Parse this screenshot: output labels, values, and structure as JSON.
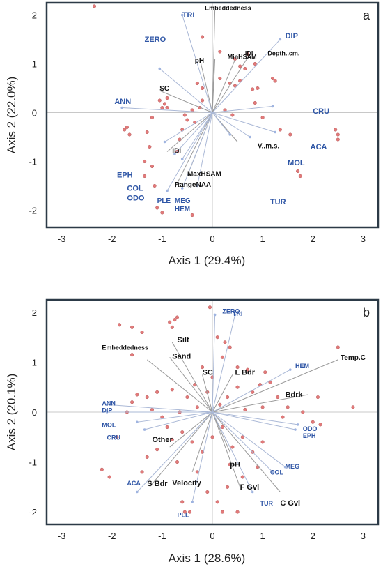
{
  "chart_data": [
    {
      "type": "scatter",
      "panel": "a",
      "xlabel": "Axis 1 (29.4%)",
      "ylabel": "Axis 2 (22.0%)",
      "xlim": [
        -3.3,
        3.3
      ],
      "ylim": [
        -2.35,
        2.25
      ],
      "xticks": [
        -3,
        -2,
        -1,
        0,
        1,
        2,
        3
      ],
      "yticks": [
        -2,
        -1,
        0,
        1,
        2
      ],
      "env_vectors": [
        {
          "name": "Embeddedness",
          "x": 0.05,
          "y": 2.1,
          "lx": -0.15,
          "ly": 2.1,
          "size": 9
        },
        {
          "name": "pH",
          "x": -0.25,
          "y": 1.1,
          "lx": -0.35,
          "ly": 1.02,
          "size": 10
        },
        {
          "name": "MinHSAM",
          "x": 0.05,
          "y": 1.1,
          "lx": 0.3,
          "ly": 1.1,
          "size": 9
        },
        {
          "name": "IDI",
          "x": 0.5,
          "y": 1.2,
          "lx": 0.65,
          "ly": 1.17,
          "size": 9
        },
        {
          "name": "Depth..cm.",
          "x": 0.75,
          "y": 1.2,
          "lx": 1.1,
          "ly": 1.17,
          "size": 9
        },
        {
          "name": "SC",
          "x": -1.05,
          "y": 0.45,
          "lx": -1.05,
          "ly": 0.45,
          "size": 10
        },
        {
          "name": "IDI",
          "x": -0.9,
          "y": -0.8,
          "lx": -0.8,
          "ly": -0.83,
          "size": 10
        },
        {
          "name": "MaxHSAM",
          "x": -0.5,
          "y": -1.3,
          "lx": -0.5,
          "ly": -1.3,
          "size": 10
        },
        {
          "name": "RangeNAA",
          "x": -0.75,
          "y": -1.55,
          "lx": -0.75,
          "ly": -1.52,
          "size": 10
        },
        {
          "name": "V..m.s.",
          "x": 0.5,
          "y": -0.6,
          "lx": 0.9,
          "ly": -0.73,
          "size": 10
        }
      ],
      "species_vectors": [
        {
          "name": "TRI",
          "x": -0.6,
          "y": 2.0,
          "lx": -0.6,
          "ly": 1.95,
          "size": 11
        },
        {
          "name": "ZERO",
          "x": -1.05,
          "y": 0.9,
          "lx": -1.35,
          "ly": 1.45,
          "size": 11
        },
        {
          "name": "DIP",
          "x": 1.35,
          "y": 1.5,
          "lx": 1.45,
          "ly": 1.52,
          "size": 11
        },
        {
          "name": "ANN",
          "x": -1.8,
          "y": 0.1,
          "lx": -1.95,
          "ly": 0.18,
          "size": 11
        },
        {
          "name": "CRU",
          "x": 1.2,
          "y": 0.13,
          "lx": 2.0,
          "ly": -0.02,
          "size": 11
        },
        {
          "name": "ACA",
          "x": 1.25,
          "y": -0.4,
          "lx": 1.95,
          "ly": -0.75,
          "size": 11
        },
        {
          "name": "MOL",
          "x": 0.75,
          "y": -0.5,
          "lx": 1.5,
          "ly": -1.08,
          "size": 11
        },
        {
          "name": "TUR",
          "x": 0.35,
          "y": -0.45,
          "lx": 1.15,
          "ly": -1.88,
          "size": 11
        },
        {
          "name": "EPH",
          "x": -0.95,
          "y": -0.6,
          "lx": -1.9,
          "ly": -1.33,
          "size": 11
        },
        {
          "name": "COL",
          "x": -0.75,
          "y": -0.85,
          "lx": -1.7,
          "ly": -1.6,
          "size": 11
        },
        {
          "name": "ODO",
          "x": -0.6,
          "y": -0.95,
          "lx": -1.7,
          "ly": -1.8,
          "size": 11
        },
        {
          "name": "PLE",
          "x": -0.9,
          "y": -1.6,
          "lx": -1.1,
          "ly": -1.85,
          "size": 10
        },
        {
          "name": "MEG",
          "x": -0.6,
          "y": -1.55,
          "lx": -0.75,
          "ly": -1.85,
          "size": 10
        },
        {
          "name": "HEM",
          "x": -0.3,
          "y": -1.5,
          "lx": -0.75,
          "ly": -2.02,
          "size": 10
        }
      ],
      "site_points": [
        [
          -2.35,
          2.18
        ],
        [
          -1.5,
          2.35
        ],
        [
          -0.2,
          1.55
        ],
        [
          0.15,
          1.25
        ],
        [
          0.45,
          1.1
        ],
        [
          0.55,
          0.95
        ],
        [
          0.65,
          0.9
        ],
        [
          0.85,
          1.0
        ],
        [
          0.7,
          1.2
        ],
        [
          1.2,
          0.7
        ],
        [
          1.25,
          0.65
        ],
        [
          0.8,
          0.48
        ],
        [
          0.9,
          0.5
        ],
        [
          0.45,
          0.55
        ],
        [
          -0.2,
          0.25
        ],
        [
          -0.25,
          0.1
        ],
        [
          -0.4,
          0.05
        ],
        [
          -0.35,
          -0.2
        ],
        [
          -0.5,
          -0.15
        ],
        [
          -0.6,
          -0.35
        ],
        [
          -0.65,
          -0.55
        ],
        [
          -0.7,
          -0.8
        ],
        [
          -0.95,
          0.18
        ],
        [
          -0.9,
          0.1
        ],
        [
          -1.0,
          0.1
        ],
        [
          -1.05,
          0.25
        ],
        [
          -0.9,
          0.3
        ],
        [
          -1.2,
          -0.1
        ],
        [
          -1.7,
          -0.3
        ],
        [
          -1.75,
          -0.35
        ],
        [
          -1.65,
          -0.45
        ],
        [
          -1.3,
          -0.4
        ],
        [
          -1.25,
          -0.7
        ],
        [
          -1.35,
          -1.0
        ],
        [
          -1.2,
          -1.1
        ],
        [
          -1.35,
          -1.3
        ],
        [
          -1.15,
          -1.5
        ],
        [
          -1.1,
          -1.95
        ],
        [
          -1.0,
          -2.05
        ],
        [
          -0.4,
          -2.1
        ],
        [
          0.85,
          0.2
        ],
        [
          1.0,
          -0.1
        ],
        [
          1.35,
          -0.35
        ],
        [
          1.55,
          -0.45
        ],
        [
          1.7,
          -1.2
        ],
        [
          1.75,
          -1.3
        ],
        [
          2.45,
          -0.35
        ],
        [
          2.5,
          -0.45
        ],
        [
          2.5,
          -0.55
        ],
        [
          0.55,
          0.65
        ],
        [
          0.35,
          0.6
        ],
        [
          -0.2,
          0.5
        ],
        [
          -0.3,
          0.6
        ],
        [
          0.15,
          0.7
        ],
        [
          -0.55,
          -0.05
        ],
        [
          0.25,
          0.05
        ],
        [
          0.4,
          -0.05
        ]
      ]
    },
    {
      "type": "scatter",
      "panel": "b",
      "xlabel": "Axis 1 (28.6%)",
      "ylabel": "Axis 2 (20.1%)",
      "xlim": [
        -3.3,
        3.3
      ],
      "ylim": [
        -2.25,
        2.25
      ],
      "xticks": [
        -3,
        -2,
        -1,
        0,
        1,
        2,
        3
      ],
      "yticks": [
        -2,
        -1,
        0,
        1,
        2
      ],
      "env_vectors": [
        {
          "name": "Embeddedness",
          "x": -1.3,
          "y": 1.05,
          "lx": -2.2,
          "ly": 1.25,
          "size": 9
        },
        {
          "name": "Silt",
          "x": -0.8,
          "y": 1.4,
          "lx": -0.7,
          "ly": 1.4,
          "size": 11
        },
        {
          "name": "Sand",
          "x": -0.85,
          "y": 1.1,
          "lx": -0.8,
          "ly": 1.07,
          "size": 11
        },
        {
          "name": "SC",
          "x": -0.2,
          "y": 0.75,
          "lx": -0.2,
          "ly": 0.75,
          "size": 11
        },
        {
          "name": "L Bdr",
          "x": 0.4,
          "y": 0.75,
          "lx": 0.45,
          "ly": 0.75,
          "size": 11
        },
        {
          "name": "Temp.C",
          "x": 2.5,
          "y": 1.05,
          "lx": 2.55,
          "ly": 1.05,
          "size": 10
        },
        {
          "name": "Bdrk",
          "x": 1.9,
          "y": 0.35,
          "lx": 1.45,
          "ly": 0.3,
          "size": 11
        },
        {
          "name": "Other",
          "x": -0.85,
          "y": -0.7,
          "lx": -1.2,
          "ly": -0.6,
          "size": 11
        },
        {
          "name": "S Bdr",
          "x": -1.25,
          "y": -1.5,
          "lx": -1.3,
          "ly": -1.48,
          "size": 11
        },
        {
          "name": "Velocity",
          "x": -0.4,
          "y": -1.2,
          "lx": -0.8,
          "ly": -1.47,
          "size": 11
        },
        {
          "name": "pH",
          "x": 0.35,
          "y": -0.8,
          "lx": 0.35,
          "ly": -1.1,
          "size": 11
        },
        {
          "name": "F Gvl",
          "x": 0.55,
          "y": -1.5,
          "lx": 0.55,
          "ly": -1.55,
          "size": 11
        },
        {
          "name": "C Gvl",
          "x": 1.35,
          "y": -1.6,
          "lx": 1.35,
          "ly": -1.87,
          "size": 11
        }
      ],
      "species_vectors": [
        {
          "name": "ZERO",
          "x": 0.05,
          "y": 1.95,
          "lx": 0.2,
          "ly": 1.98,
          "size": 9
        },
        {
          "name": "TRI",
          "x": 0.45,
          "y": 1.95,
          "lx": 0.4,
          "ly": 1.93,
          "size": 9
        },
        {
          "name": "HEM",
          "x": 1.55,
          "y": 0.85,
          "lx": 1.65,
          "ly": 0.88,
          "size": 9
        },
        {
          "name": "ANN",
          "x": -2.1,
          "y": 0.15,
          "lx": -2.2,
          "ly": 0.13,
          "size": 9
        },
        {
          "name": "DIP",
          "x": -2.1,
          "y": 0.0,
          "lx": -2.2,
          "ly": -0.01,
          "size": 9
        },
        {
          "name": "MOL",
          "x": -1.5,
          "y": -0.2,
          "lx": -2.2,
          "ly": -0.3,
          "size": 9
        },
        {
          "name": "CRU",
          "x": -1.35,
          "y": -0.35,
          "lx": -2.1,
          "ly": -0.55,
          "size": 9
        },
        {
          "name": "ODO",
          "x": 1.7,
          "y": -0.25,
          "lx": 1.8,
          "ly": -0.38,
          "size": 9
        },
        {
          "name": "EPH",
          "x": 1.65,
          "y": -0.35,
          "lx": 1.8,
          "ly": -0.52,
          "size": 9
        },
        {
          "name": "MEG",
          "x": 1.45,
          "y": -1.1,
          "lx": 1.45,
          "ly": -1.13,
          "size": 9
        },
        {
          "name": "COL",
          "x": 1.2,
          "y": -1.2,
          "lx": 1.15,
          "ly": -1.25,
          "size": 9
        },
        {
          "name": "ACA",
          "x": -1.5,
          "y": -1.6,
          "lx": -1.7,
          "ly": -1.47,
          "size": 9
        },
        {
          "name": "TUR",
          "x": 0.8,
          "y": -1.6,
          "lx": 0.95,
          "ly": -1.87,
          "size": 9
        },
        {
          "name": "PLE",
          "x": -0.4,
          "y": -1.8,
          "lx": -0.7,
          "ly": -2.1,
          "size": 9
        }
      ],
      "site_points": [
        [
          -1.85,
          1.75
        ],
        [
          -1.6,
          1.7
        ],
        [
          -1.4,
          1.6
        ],
        [
          -1.6,
          1.15
        ],
        [
          -0.85,
          1.8
        ],
        [
          -0.75,
          1.85
        ],
        [
          -0.7,
          1.9
        ],
        [
          -0.8,
          1.7
        ],
        [
          -0.05,
          2.1
        ],
        [
          0.1,
          1.5
        ],
        [
          0.25,
          1.4
        ],
        [
          0.35,
          1.3
        ],
        [
          0.2,
          1.1
        ],
        [
          2.5,
          1.3
        ],
        [
          2.8,
          0.1
        ],
        [
          2.1,
          0.3
        ],
        [
          2.0,
          -0.2
        ],
        [
          2.15,
          -0.25
        ],
        [
          1.8,
          0.0
        ],
        [
          1.3,
          0.3
        ],
        [
          1.5,
          0.1
        ],
        [
          1.0,
          0.1
        ],
        [
          0.8,
          0.4
        ],
        [
          0.5,
          0.5
        ],
        [
          0.3,
          0.3
        ],
        [
          0.15,
          0.15
        ],
        [
          -0.1,
          0.4
        ],
        [
          -0.3,
          0.1
        ],
        [
          -0.5,
          0.3
        ],
        [
          -0.8,
          0.45
        ],
        [
          -1.1,
          0.4
        ],
        [
          -1.3,
          0.3
        ],
        [
          -1.5,
          0.35
        ],
        [
          -1.6,
          0.2
        ],
        [
          -1.2,
          0.05
        ],
        [
          -1.0,
          -0.1
        ],
        [
          -0.9,
          -0.3
        ],
        [
          -0.6,
          -0.4
        ],
        [
          -0.4,
          -0.6
        ],
        [
          -0.2,
          -0.8
        ],
        [
          0.0,
          -0.5
        ],
        [
          0.2,
          -0.3
        ],
        [
          0.4,
          -0.7
        ],
        [
          0.6,
          -0.5
        ],
        [
          0.8,
          -0.8
        ],
        [
          1.0,
          -0.6
        ],
        [
          0.9,
          -1.1
        ],
        [
          0.6,
          -1.3
        ],
        [
          0.3,
          -1.5
        ],
        [
          0.1,
          -1.8
        ],
        [
          -0.1,
          -1.6
        ],
        [
          0.2,
          -2.0
        ],
        [
          0.5,
          -2.0
        ],
        [
          -2.2,
          -1.15
        ],
        [
          -2.05,
          -1.3
        ],
        [
          -1.4,
          -1.2
        ],
        [
          -1.3,
          -0.9
        ],
        [
          -1.1,
          -0.75
        ],
        [
          -0.7,
          -1.0
        ],
        [
          -0.6,
          -1.8
        ],
        [
          -0.3,
          -1.2
        ],
        [
          -0.55,
          -2.0
        ],
        [
          -0.45,
          -2.0
        ],
        [
          0.5,
          0.9
        ],
        [
          0.7,
          0.85
        ],
        [
          -0.2,
          0.9
        ],
        [
          0.0,
          0.7
        ],
        [
          -1.7,
          0.0
        ],
        [
          -1.9,
          -0.5
        ],
        [
          0.95,
          0.55
        ],
        [
          1.15,
          0.6
        ],
        [
          1.4,
          -0.1
        ],
        [
          0.65,
          0.05
        ],
        [
          -0.65,
          0.0
        ],
        [
          -0.8,
          -0.55
        ],
        [
          0.35,
          -1.05
        ],
        [
          1.05,
          0.8
        ],
        [
          -0.35,
          0.55
        ]
      ]
    }
  ]
}
